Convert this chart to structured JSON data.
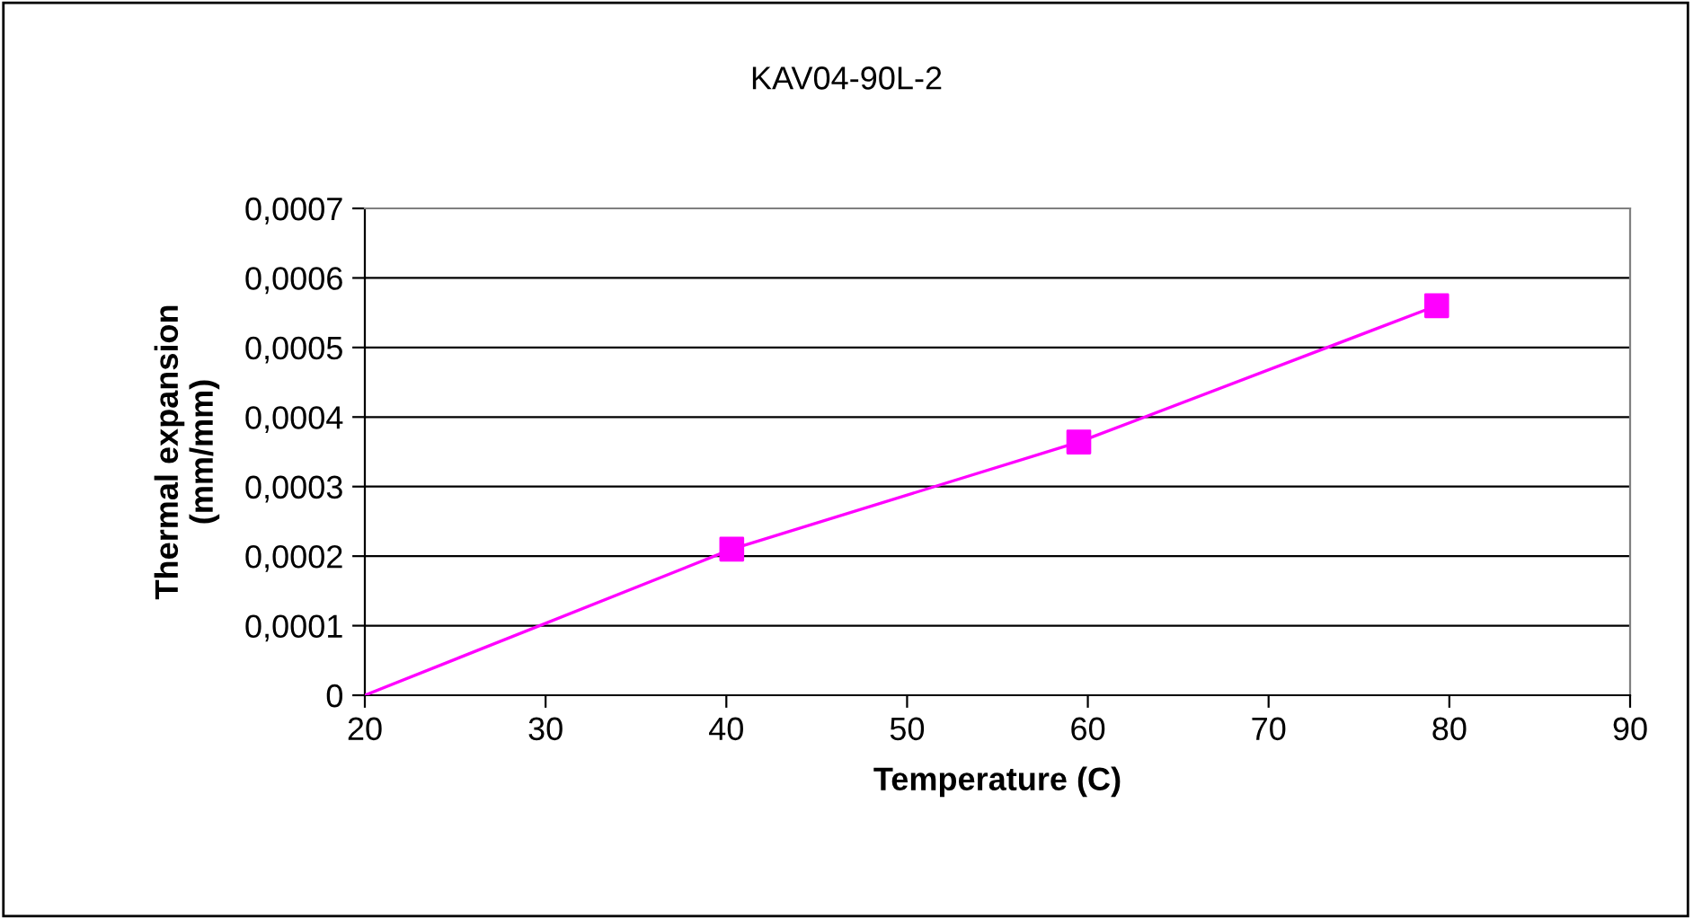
{
  "chart_data": {
    "type": "line",
    "title": "KAV04-90L-2",
    "xlabel": "Temperature (C)",
    "ylabel": "Thermal expansion\n(mm/mm)",
    "series": [
      {
        "type": "line",
        "color": "#ff00ff",
        "x": [
          20,
          40.3,
          59.5,
          79.3
        ],
        "values": [
          0,
          0.00021,
          0.000364,
          0.00056
        ],
        "marker": "none"
      },
      {
        "type": "scatter",
        "color": "#ff00ff",
        "x": [
          40.3,
          59.5,
          79.3
        ],
        "values": [
          0.00021,
          0.000364,
          0.00056
        ],
        "marker": "square"
      }
    ],
    "xlim": [
      20,
      90
    ],
    "xticks": [
      20,
      30,
      40,
      50,
      60,
      70,
      80,
      90
    ],
    "ylim": [
      0,
      0.0007
    ],
    "yticks": [
      {
        "value": 0,
        "label": "0"
      },
      {
        "value": 0.0001,
        "label": "0,0001"
      },
      {
        "value": 0.0002,
        "label": "0,0002"
      },
      {
        "value": 0.0003,
        "label": "0,0003"
      },
      {
        "value": 0.0004,
        "label": "0,0004"
      },
      {
        "value": 0.0005,
        "label": "0,0005"
      },
      {
        "value": 0.0006,
        "label": "0,0006"
      },
      {
        "value": 0.0007,
        "label": "0,0007"
      }
    ],
    "grid": "y",
    "legend": false
  }
}
